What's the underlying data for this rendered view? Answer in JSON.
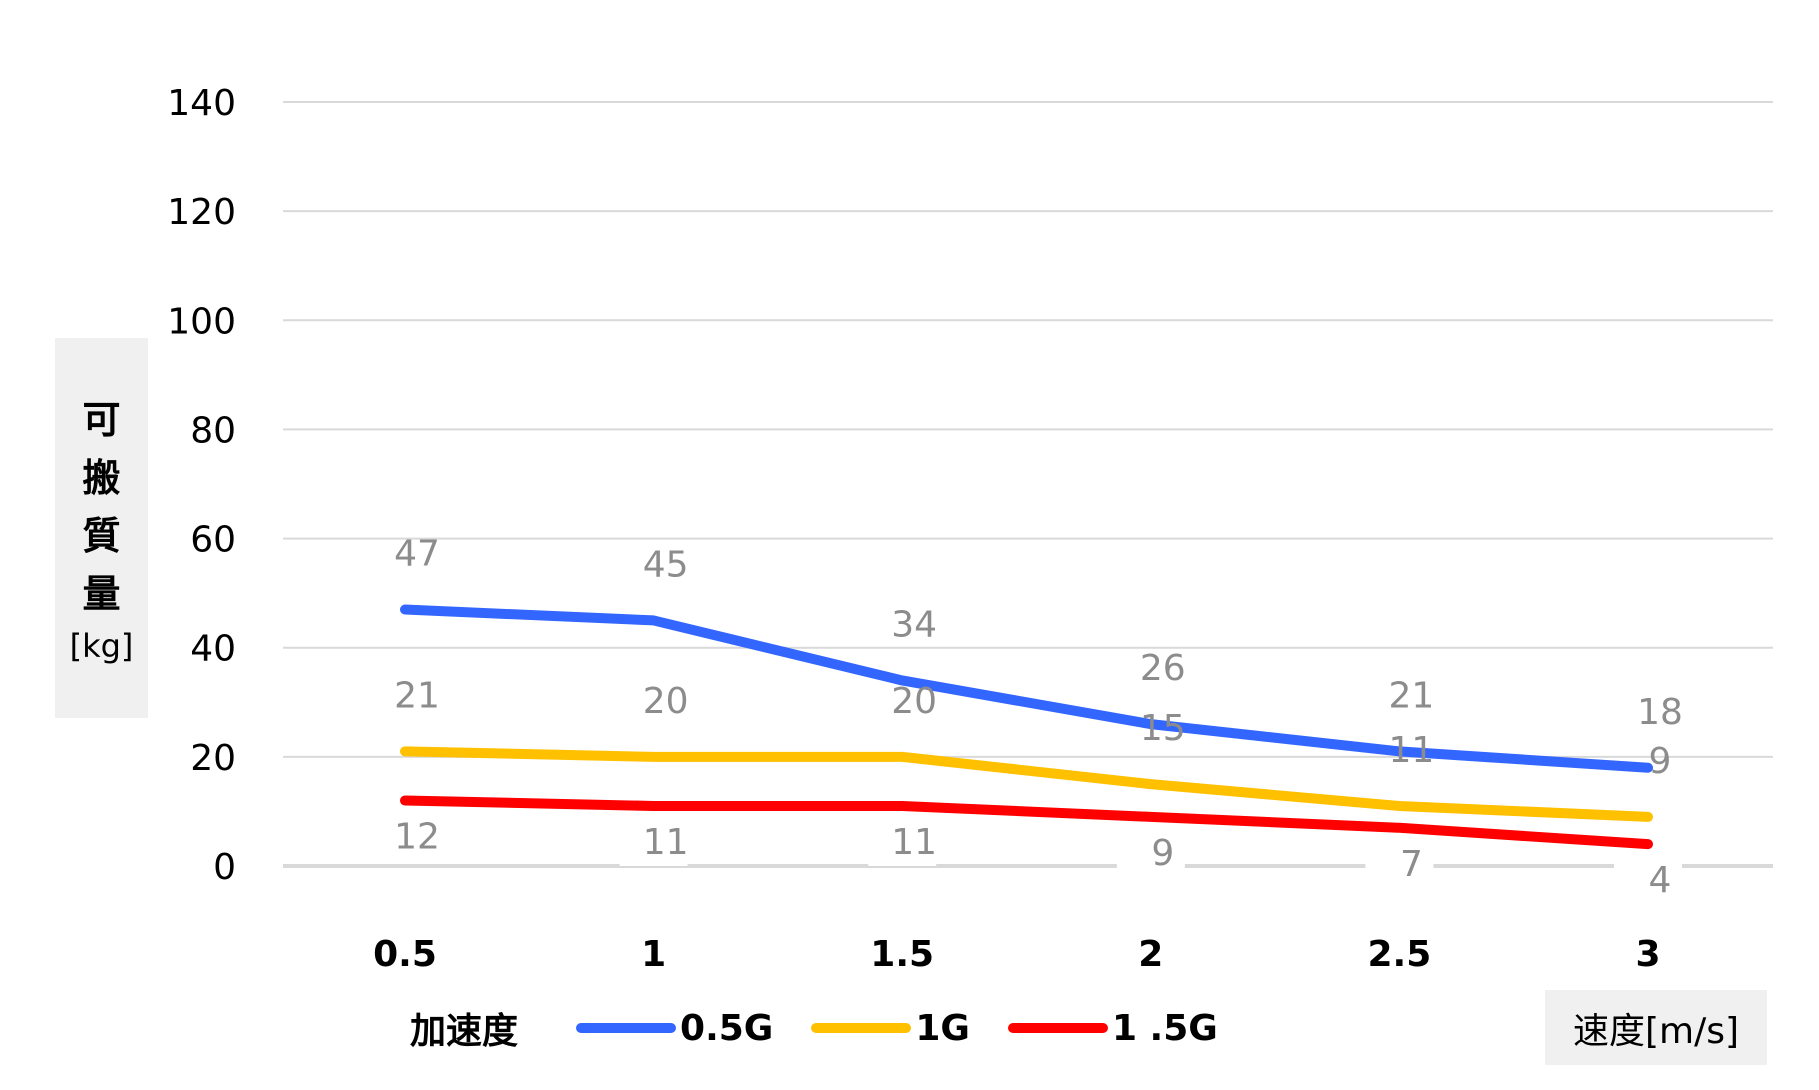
{
  "chart_data": {
    "type": "line",
    "x": [
      "0.5",
      "1",
      "1.5",
      "2",
      "2.5",
      "3"
    ],
    "xlabel": "速度[m/s]",
    "ylabel": "可搬質量",
    "ylabel_unit": "[kg]",
    "ylim": [
      0,
      140
    ],
    "yticks": [
      0,
      20,
      40,
      60,
      80,
      100,
      120,
      140
    ],
    "grid": true,
    "legend_title": "加速度",
    "legend_position": "bottom",
    "series": [
      {
        "name": "0.5G",
        "color": "#3366ff",
        "values": [
          47,
          45,
          34,
          26,
          21,
          18
        ]
      },
      {
        "name": "1G",
        "color": "#ffc000",
        "values": [
          21,
          20,
          20,
          15,
          11,
          9
        ]
      },
      {
        "name": "1 .5G",
        "color": "#ff0000",
        "values": [
          12,
          11,
          11,
          9,
          7,
          4
        ]
      }
    ]
  }
}
